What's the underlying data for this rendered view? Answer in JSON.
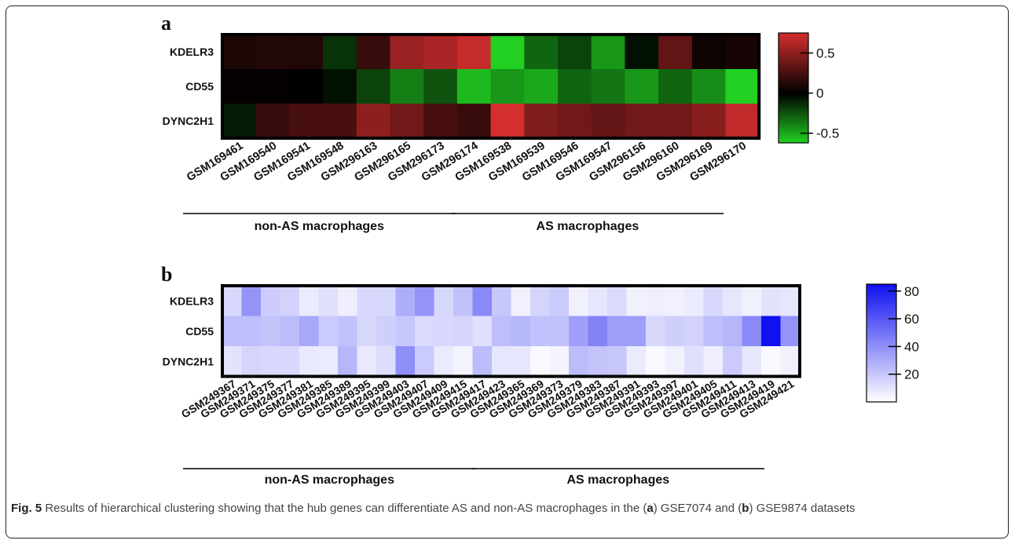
{
  "chart_data": [
    {
      "type": "heatmap",
      "panel_label": "a",
      "rows": [
        "KDELR3",
        "CD55",
        "DYNC2H1"
      ],
      "columns": [
        "GSM169461",
        "GSM169540",
        "GSM169541",
        "GSM169548",
        "GSM296163",
        "GSM296165",
        "GSM296173",
        "GSM296174",
        "GSM169538",
        "GSM169539",
        "GSM169546",
        "GSM169547",
        "GSM296156",
        "GSM296160",
        "GSM296169",
        "GSM296170"
      ],
      "values": [
        [
          0.1,
          0.12,
          0.12,
          -0.15,
          0.2,
          0.55,
          0.6,
          0.7,
          -0.75,
          -0.3,
          -0.2,
          -0.45,
          -0.05,
          0.35,
          0.05,
          0.08
        ],
        [
          0.02,
          0.02,
          0.0,
          -0.05,
          -0.2,
          -0.38,
          -0.25,
          -0.55,
          -0.45,
          -0.5,
          -0.3,
          -0.35,
          -0.45,
          -0.3,
          -0.42,
          -0.62
        ],
        [
          -0.08,
          0.2,
          0.25,
          0.25,
          0.5,
          0.4,
          0.25,
          0.2,
          0.75,
          0.45,
          0.4,
          0.35,
          0.4,
          0.4,
          0.48,
          0.68
        ]
      ],
      "color_scale": {
        "min": -0.62,
        "max": 0.75,
        "low_color": "#22d022",
        "mid_color": "#000000",
        "high_color": "#d42e2e"
      },
      "colorbar_ticks": [
        "0.5",
        "0",
        "-0.5"
      ],
      "colorbar_tick_values": [
        0.5,
        0,
        -0.5
      ],
      "groups": [
        {
          "label": "non-AS macrophages",
          "from": 0,
          "to": 7
        },
        {
          "label": "AS macrophages",
          "from": 8,
          "to": 15
        }
      ]
    },
    {
      "type": "heatmap",
      "panel_label": "b",
      "rows": [
        "KDELR3",
        "CD55",
        "DYNC2H1"
      ],
      "columns": [
        "GSM249367",
        "GSM249371",
        "GSM249375",
        "GSM249377",
        "GSM249381",
        "GSM249385",
        "GSM249389",
        "GSM249395",
        "GSM249399",
        "GSM249403",
        "GSM249407",
        "GSM249409",
        "GSM249415",
        "GSM249417",
        "GSM249423",
        "GSM249365",
        "GSM249369",
        "GSM249373",
        "GSM249379",
        "GSM249383",
        "GSM249387",
        "GSM249391",
        "GSM249393",
        "GSM249397",
        "GSM249401",
        "GSM249405",
        "GSM249411",
        "GSM249413",
        "GSM249419",
        "GSM249421"
      ],
      "values": [
        [
          14,
          38,
          18,
          16,
          7,
          11,
          6,
          14,
          14,
          29,
          38,
          14,
          22,
          42,
          20,
          5,
          15,
          19,
          5,
          9,
          13,
          5,
          6,
          5,
          7,
          14,
          9,
          5,
          10,
          9
        ],
        [
          23,
          23,
          21,
          24,
          31,
          19,
          22,
          14,
          17,
          20,
          13,
          14,
          15,
          11,
          23,
          26,
          22,
          22,
          34,
          44,
          34,
          34,
          14,
          17,
          16,
          23,
          26,
          42,
          85,
          38
        ],
        [
          10,
          15,
          14,
          14,
          8,
          7,
          26,
          8,
          12,
          40,
          19,
          7,
          4,
          24,
          9,
          9,
          2,
          4,
          24,
          21,
          20,
          7,
          2,
          5,
          11,
          6,
          19,
          9,
          2,
          5
        ]
      ],
      "color_scale": {
        "min": 0,
        "max": 85,
        "low_color": "#ffffff",
        "high_color": "#1010f0"
      },
      "colorbar_ticks": [
        "80",
        "60",
        "40",
        "20"
      ],
      "colorbar_tick_values": [
        80,
        60,
        40,
        20
      ],
      "groups": [
        {
          "label": "non-AS macrophages",
          "from": 0,
          "to": 14
        },
        {
          "label": "AS macrophages",
          "from": 15,
          "to": 29
        }
      ]
    }
  ],
  "caption": {
    "fig_label": "Fig. 5",
    "text_1": " Results of hierarchical clustering showing that the hub genes can differentiate AS and non-AS macrophages in the (",
    "a": "a",
    "text_2": ") GSE7074 and (",
    "b": "b",
    "text_3": ") GSE9874 datasets"
  }
}
